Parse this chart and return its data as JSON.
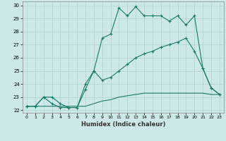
{
  "xlabel": "Humidex (Indice chaleur)",
  "bg_color": "#cce8e8",
  "grid_color": "#b0d0d0",
  "line_color": "#1a7a6a",
  "xlim": [
    -0.5,
    23.5
  ],
  "ylim": [
    21.8,
    30.3
  ],
  "xticks": [
    0,
    1,
    2,
    3,
    4,
    5,
    6,
    7,
    8,
    9,
    10,
    11,
    12,
    13,
    14,
    15,
    16,
    17,
    18,
    19,
    20,
    21,
    22,
    23
  ],
  "yticks": [
    22,
    23,
    24,
    25,
    26,
    27,
    28,
    29,
    30
  ],
  "line1_x": [
    0,
    1,
    2,
    3,
    4,
    5,
    6,
    7,
    8,
    9,
    10,
    11,
    12,
    13,
    14,
    15,
    16,
    17,
    18,
    19,
    20,
    21,
    22,
    23
  ],
  "line1_y": [
    22.3,
    22.3,
    23.0,
    22.5,
    22.2,
    22.2,
    22.2,
    23.6,
    25.0,
    27.5,
    27.8,
    29.8,
    29.2,
    29.9,
    29.2,
    29.2,
    29.2,
    28.8,
    29.2,
    28.5,
    29.2,
    25.2,
    23.7,
    23.2
  ],
  "line2_x": [
    0,
    1,
    2,
    3,
    4,
    5,
    6,
    7,
    8,
    9,
    10,
    11,
    12,
    13,
    14,
    15,
    16,
    17,
    18,
    19,
    20,
    21,
    22,
    23
  ],
  "line2_y": [
    22.3,
    22.3,
    23.0,
    23.0,
    22.5,
    22.2,
    22.2,
    24.0,
    25.0,
    24.3,
    24.5,
    25.0,
    25.5,
    26.0,
    26.3,
    26.5,
    26.8,
    27.0,
    27.2,
    27.5,
    26.5,
    25.2,
    23.7,
    23.2
  ],
  "line3_x": [
    0,
    1,
    2,
    3,
    4,
    5,
    6,
    7,
    8,
    9,
    10,
    11,
    12,
    13,
    14,
    15,
    16,
    17,
    18,
    19,
    20,
    21,
    22,
    23
  ],
  "line3_y": [
    22.3,
    22.3,
    22.3,
    22.3,
    22.3,
    22.3,
    22.3,
    22.3,
    22.5,
    22.7,
    22.8,
    23.0,
    23.1,
    23.2,
    23.3,
    23.3,
    23.3,
    23.3,
    23.3,
    23.3,
    23.3,
    23.3,
    23.2,
    23.2
  ]
}
